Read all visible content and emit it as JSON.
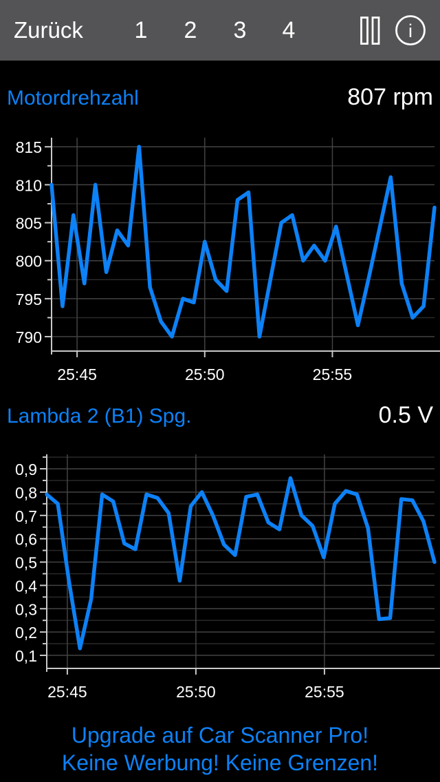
{
  "nav": {
    "back_label": "Zurück",
    "tabs": [
      "1",
      "2",
      "3",
      "4"
    ],
    "info_icon_text": "i"
  },
  "colors": {
    "accent": "#0d81f6",
    "nav_bg": "#545456",
    "background": "#000000",
    "axis": "#c9c9c9",
    "grid_major": "#434343",
    "grid_minor": "#292929",
    "tick_label": "#ffffff",
    "value_text": "#ffffff"
  },
  "chart_data": [
    {
      "type": "line",
      "title": "Motordrehzahl",
      "unit": "rpm",
      "current_value": 807,
      "current_value_label": "807 rpm",
      "x_tick_labels": [
        "25:45",
        "25:50",
        "25:55"
      ],
      "x_tick_times_min": [
        45,
        50,
        55
      ],
      "x_range_min": [
        44.0,
        59.0
      ],
      "y_range": [
        788.1,
        816.2
      ],
      "y_major_ticks": [
        790,
        795,
        800,
        805,
        810,
        815
      ],
      "y_major_labels": [
        "790",
        "795",
        "800",
        "805",
        "810",
        "815"
      ],
      "y_minor_ticks": [
        792.5,
        797.5,
        802.5,
        807.5,
        812.5
      ],
      "grid": true,
      "legend": "none",
      "values": [
        810,
        794,
        806,
        797,
        810,
        798.5,
        804,
        802,
        815,
        796.5,
        792,
        790,
        795,
        794.5,
        802.5,
        797.5,
        796,
        808,
        809,
        790,
        797.5,
        805,
        806,
        800,
        802,
        800,
        804.5,
        798,
        791.5,
        797.8,
        804.4,
        811,
        797,
        792.5,
        794,
        807
      ]
    },
    {
      "type": "line",
      "title": "Lambda 2 (B1) Spg.",
      "unit": "V",
      "current_value": 0.5,
      "current_value_label": "0.5 V",
      "x_tick_labels": [
        "25:45",
        "25:50",
        "25:55"
      ],
      "x_tick_times_min": [
        45,
        50,
        55
      ],
      "x_range_min": [
        44.2,
        59.28
      ],
      "y_range": [
        0.044,
        0.962
      ],
      "y_major_ticks": [
        0.1,
        0.2,
        0.3,
        0.4,
        0.5,
        0.6,
        0.7,
        0.8,
        0.9
      ],
      "y_major_labels": [
        "0,1",
        "0,2",
        "0,3",
        "0,4",
        "0,5",
        "0,6",
        "0,7",
        "0,8",
        "0,9"
      ],
      "y_minor_ticks": [
        0.15,
        0.25,
        0.35,
        0.45,
        0.55,
        0.65,
        0.75,
        0.85,
        0.95
      ],
      "grid": true,
      "legend": "none",
      "values": [
        0.79,
        0.75,
        0.42,
        0.13,
        0.34,
        0.79,
        0.76,
        0.58,
        0.555,
        0.79,
        0.775,
        0.71,
        0.42,
        0.74,
        0.8,
        0.7,
        0.575,
        0.53,
        0.78,
        0.79,
        0.67,
        0.64,
        0.86,
        0.7,
        0.655,
        0.52,
        0.75,
        0.805,
        0.79,
        0.645,
        0.255,
        0.26,
        0.77,
        0.765,
        0.675,
        0.5
      ]
    }
  ],
  "ad": {
    "line1": "Upgrade auf Car Scanner Pro!",
    "line2": "Keine Werbung! Keine Grenzen!"
  }
}
